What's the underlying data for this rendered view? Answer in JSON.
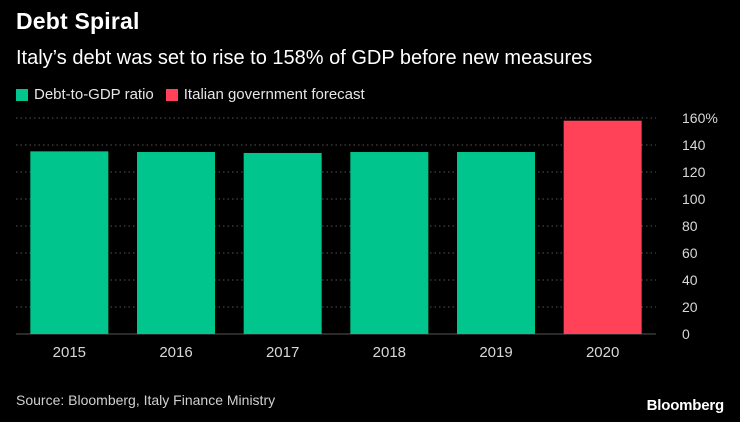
{
  "chart_data": {
    "type": "bar",
    "title": "Debt Spiral",
    "subtitle": "Italy’s debt was set to rise to 158% of GDP before new measures",
    "categories": [
      "2015",
      "2016",
      "2017",
      "2018",
      "2019",
      "2020"
    ],
    "values": [
      135.3,
      134.8,
      134.1,
      134.8,
      134.8,
      158
    ],
    "series_for_bar": [
      "debt",
      "debt",
      "debt",
      "debt",
      "debt",
      "forecast"
    ],
    "legend": [
      {
        "key": "debt",
        "label": "Debt-to-GDP ratio",
        "color": "#00c58d"
      },
      {
        "key": "forecast",
        "label": "Italian government forecast",
        "color": "#ff4257"
      }
    ],
    "yticks": [
      0,
      20,
      40,
      60,
      80,
      100,
      120,
      140,
      160
    ],
    "ytick_labels": [
      "0",
      "20",
      "40",
      "60",
      "80",
      "100",
      "120",
      "140",
      "160%"
    ],
    "ylim": [
      0,
      160
    ],
    "xlabel": "",
    "ylabel": "",
    "grid": true
  },
  "source": "Source: Bloomberg, Italy Finance Ministry",
  "brand": "Bloomberg",
  "colors": {
    "background": "#000000",
    "grid": "#555555",
    "tick_text": "#d8d8d8"
  }
}
